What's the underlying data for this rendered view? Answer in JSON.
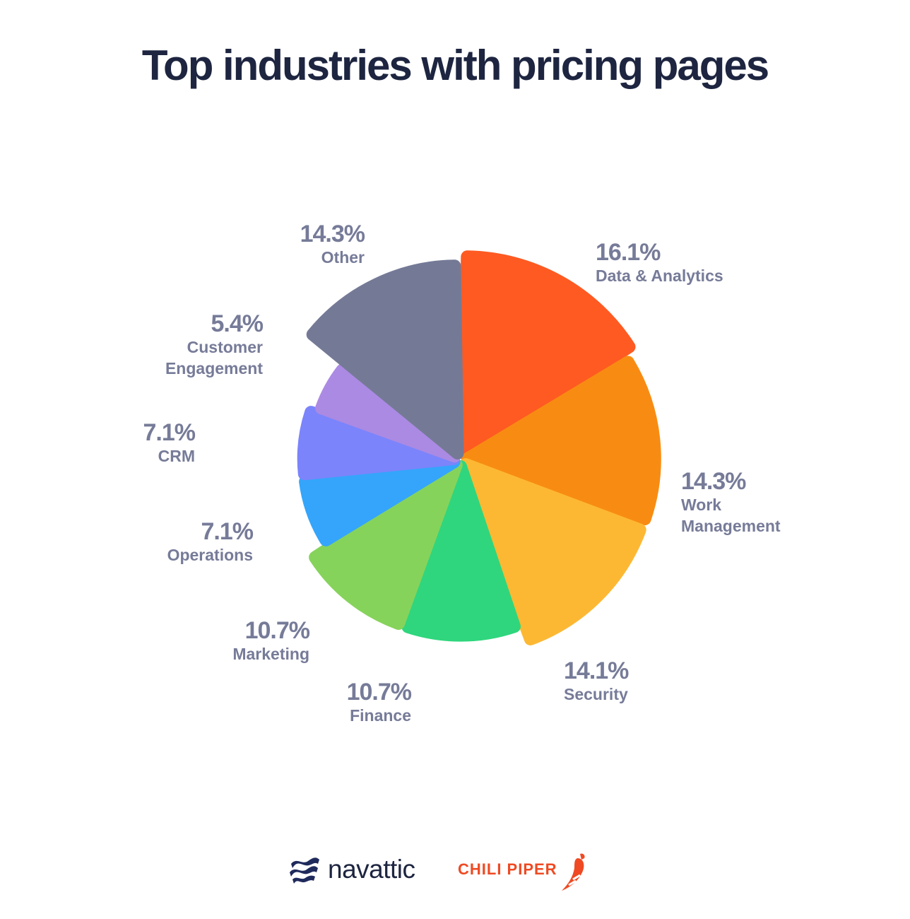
{
  "chart_data": {
    "type": "pie",
    "title": "Top industries with pricing pages",
    "slices": [
      {
        "label": "Data & Analytics",
        "value_label": "16.1%",
        "value": 16.1,
        "color": "#ff5a22"
      },
      {
        "label": "Work Management",
        "value_label": "14.3%",
        "value": 14.3,
        "color": "#f88c12"
      },
      {
        "label": "Security",
        "value_label": "14.1%",
        "value": 14.1,
        "color": "#fdb833"
      },
      {
        "label": "Finance",
        "value_label": "10.7%",
        "value": 10.7,
        "color": "#2fd67d"
      },
      {
        "label": "Marketing",
        "value_label": "10.7%",
        "value": 10.7,
        "color": "#86d35b"
      },
      {
        "label": "Operations",
        "value_label": "7.1%",
        "value": 7.1,
        "color": "#34a5fb"
      },
      {
        "label": "CRM",
        "value_label": "7.1%",
        "value": 7.1,
        "color": "#7b84fb"
      },
      {
        "label": "Customer Engagement",
        "value_label": "5.4%",
        "value": 5.4,
        "color": "#ab8ae3"
      },
      {
        "label": "Other",
        "value_label": "14.3%",
        "value": 14.3,
        "color": "#747a96"
      }
    ],
    "label_color": "#767b98"
  },
  "footer": {
    "navattic": "navattic",
    "chili_piper": "CHILI PIPER"
  }
}
